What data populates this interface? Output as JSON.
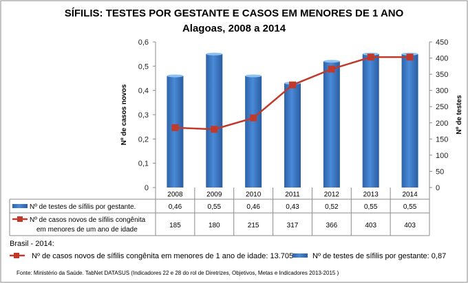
{
  "chart_data": {
    "type": "bar",
    "title": "SÍFILIS: TESTES POR GESTANTE E CASOS EM MENORES DE 1 ANO",
    "subtitle": "Alagoas, 2008 a 2014",
    "categories": [
      "2008",
      "2009",
      "2010",
      "2011",
      "2012",
      "2013",
      "2014"
    ],
    "left_axis": {
      "label": "Nº de casos  novos",
      "range": [
        0,
        0.6
      ],
      "ticks": [
        "0",
        "0,1",
        "0,2",
        "0,3",
        "0,4",
        "0,5",
        "0,6"
      ]
    },
    "right_axis": {
      "label": "Nº de testes",
      "range": [
        0,
        450
      ],
      "ticks": [
        "0",
        "50",
        "100",
        "150",
        "200",
        "250",
        "300",
        "350",
        "400",
        "450"
      ]
    },
    "series": [
      {
        "name": "Nº de testes de sífilis por gestante.",
        "type": "bar",
        "axis": "left",
        "color": "#3f7fcf",
        "values": [
          0.46,
          0.55,
          0.46,
          0.43,
          0.52,
          0.55,
          0.55
        ],
        "labels": [
          "0,46",
          "0,55",
          "0,46",
          "0,43",
          "0,52",
          "0,55",
          "0,55"
        ]
      },
      {
        "name_line1": "Nº de casos novos de sífilis congênita",
        "name_line2": "em menores de um ano de idade",
        "type": "line",
        "axis": "right",
        "color": "#c0392b",
        "values": [
          185,
          180,
          215,
          317,
          366,
          403,
          403
        ],
        "labels": [
          "185",
          "180",
          "215",
          "317",
          "366",
          "403",
          "403"
        ]
      }
    ],
    "legend": "data-table"
  },
  "notes": {
    "brasil_header": "Brasil - 2014:",
    "brasil_casos": "Nº de casos novos de sífilis congênita em menores de 1 ano de idade: 13.705",
    "brasil_testes": "Nº de testes de sífilis por gestante: 0,87",
    "source": "Fonte: Ministério da Saúde. TabNet DATASUS (Indicadores  22 e 28 do rol de Diretrizes, Objetivos, Metas e Indicadores 2013-2015 )"
  }
}
